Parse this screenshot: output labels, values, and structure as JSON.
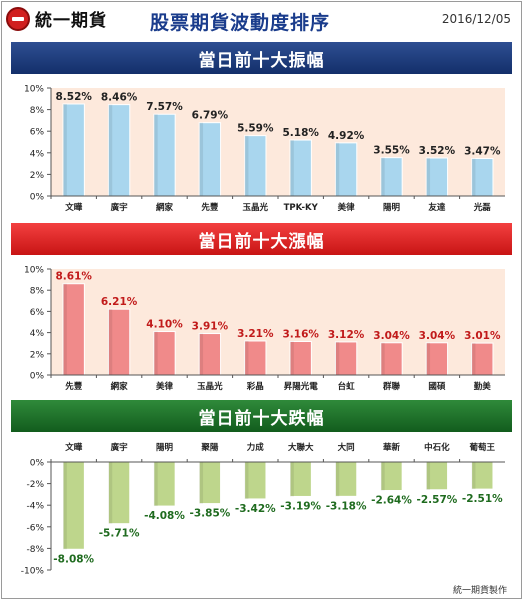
{
  "header": {
    "logo_text": "統一期貨",
    "title": "股票期貨波動度排序",
    "date": "2016/12/05"
  },
  "footer": {
    "credit": "統一期貨製作"
  },
  "colors": {
    "amplitude_bar": "#a9d6ee",
    "rise_bar": "#f08a8a",
    "fall_bar": "#bed68c",
    "amplitude_plot_bg": "#fde9dc",
    "rise_plot_bg": "#fde9dc",
    "fall_plot_bg": "#ffffff",
    "rise_label": "#c11a1a",
    "fall_label": "#1f6b1f"
  },
  "chart_data": [
    {
      "type": "bar",
      "title": "當日前十大振幅",
      "categories": [
        "文曄",
        "廣宇",
        "網家",
        "先豐",
        "玉晶光",
        "TPK-KY",
        "美律",
        "陽明",
        "友達",
        "光磊"
      ],
      "values": [
        8.52,
        8.46,
        7.57,
        6.79,
        5.59,
        5.18,
        4.92,
        3.55,
        3.52,
        3.47
      ],
      "data_labels": [
        "8.52%",
        "8.46%",
        "7.57%",
        "6.79%",
        "5.59%",
        "5.18%",
        "4.92%",
        "3.55%",
        "3.52%",
        "3.47%"
      ],
      "ylim": [
        0,
        10
      ],
      "y_ticks": [
        "0%",
        "2%",
        "4%",
        "6%",
        "8%",
        "10%"
      ],
      "grid": false,
      "category_axis": "bottom"
    },
    {
      "type": "bar",
      "title": "當日前十大漲幅",
      "categories": [
        "先豐",
        "網家",
        "美律",
        "玉晶光",
        "彩晶",
        "昇陽光電",
        "台虹",
        "群聯",
        "國碩",
        "勤美"
      ],
      "values": [
        8.61,
        6.21,
        4.1,
        3.91,
        3.21,
        3.16,
        3.12,
        3.04,
        3.04,
        3.01
      ],
      "data_labels": [
        "8.61%",
        "6.21%",
        "4.10%",
        "3.91%",
        "3.21%",
        "3.16%",
        "3.12%",
        "3.04%",
        "3.04%",
        "3.01%"
      ],
      "ylim": [
        0,
        10
      ],
      "y_ticks": [
        "0%",
        "2%",
        "4%",
        "6%",
        "8%",
        "10%"
      ],
      "grid": false,
      "category_axis": "bottom"
    },
    {
      "type": "bar",
      "title": "當日前十大跌幅",
      "categories": [
        "文曄",
        "廣宇",
        "陽明",
        "聚陽",
        "力成",
        "大聯大",
        "大同",
        "華新",
        "中石化",
        "葡萄王"
      ],
      "values": [
        -8.08,
        -5.71,
        -4.08,
        -3.85,
        -3.42,
        -3.19,
        -3.18,
        -2.64,
        -2.57,
        -2.51
      ],
      "data_labels": [
        "-8.08%",
        "-5.71%",
        "-4.08%",
        "-3.85%",
        "-3.42%",
        "-3.19%",
        "-3.18%",
        "-2.64%",
        "-2.57%",
        "-2.51%"
      ],
      "ylim": [
        -10,
        0
      ],
      "y_ticks": [
        "-10%",
        "-8%",
        "-6%",
        "-4%",
        "-2%",
        "0%"
      ],
      "grid": false,
      "category_axis": "top"
    }
  ]
}
